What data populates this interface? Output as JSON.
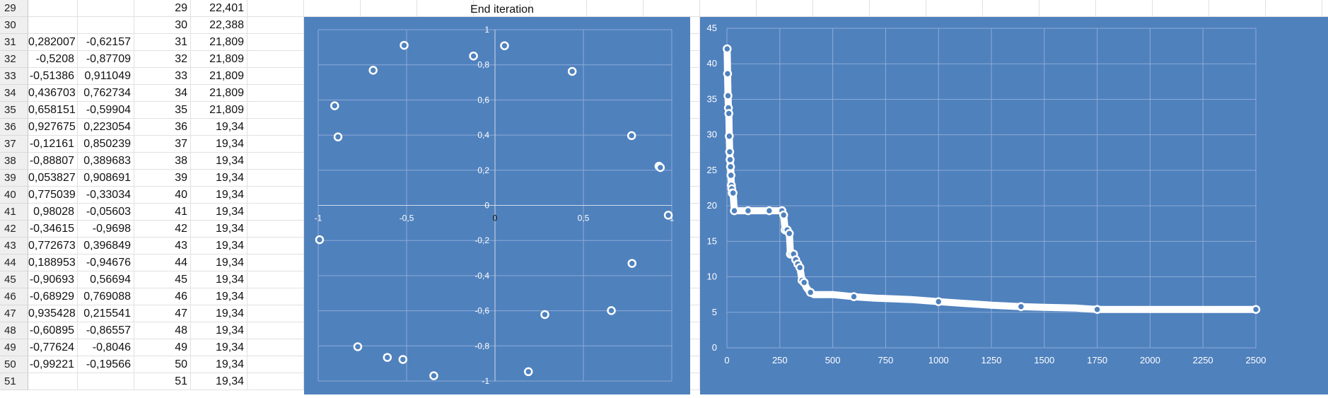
{
  "spreadsheet": {
    "rows": [
      {
        "row": "29",
        "a": "",
        "b": "",
        "c": "29",
        "d": "22,401"
      },
      {
        "row": "30",
        "a": "",
        "b": "",
        "c": "30",
        "d": "22,388"
      },
      {
        "row": "31",
        "a": "0,282007",
        "b": "-0,62157",
        "c": "31",
        "d": "21,809"
      },
      {
        "row": "32",
        "a": "-0,5208",
        "b": "-0,87709",
        "c": "32",
        "d": "21,809"
      },
      {
        "row": "33",
        "a": "-0,51386",
        "b": "0,911049",
        "c": "33",
        "d": "21,809"
      },
      {
        "row": "34",
        "a": "0,436703",
        "b": "0,762734",
        "c": "34",
        "d": "21,809"
      },
      {
        "row": "35",
        "a": "0,658151",
        "b": "-0,59904",
        "c": "35",
        "d": "21,809"
      },
      {
        "row": "36",
        "a": "0,927675",
        "b": "0,223054",
        "c": "36",
        "d": "19,34"
      },
      {
        "row": "37",
        "a": "-0,12161",
        "b": "0,850239",
        "c": "37",
        "d": "19,34"
      },
      {
        "row": "38",
        "a": "-0,88807",
        "b": "0,389683",
        "c": "38",
        "d": "19,34"
      },
      {
        "row": "39",
        "a": "0,053827",
        "b": "0,908691",
        "c": "39",
        "d": "19,34"
      },
      {
        "row": "40",
        "a": "0,775039",
        "b": "-0,33034",
        "c": "40",
        "d": "19,34"
      },
      {
        "row": "41",
        "a": "0,98028",
        "b": "-0,05603",
        "c": "41",
        "d": "19,34"
      },
      {
        "row": "42",
        "a": "-0,34615",
        "b": "-0,9698",
        "c": "42",
        "d": "19,34"
      },
      {
        "row": "43",
        "a": "0,772673",
        "b": "0,396849",
        "c": "43",
        "d": "19,34"
      },
      {
        "row": "44",
        "a": "0,188953",
        "b": "-0,94676",
        "c": "44",
        "d": "19,34"
      },
      {
        "row": "45",
        "a": "-0,90693",
        "b": "0,56694",
        "c": "45",
        "d": "19,34"
      },
      {
        "row": "46",
        "a": "-0,68929",
        "b": "0,769088",
        "c": "46",
        "d": "19,34"
      },
      {
        "row": "47",
        "a": "0,935428",
        "b": "0,215541",
        "c": "47",
        "d": "19,34"
      },
      {
        "row": "48",
        "a": "-0,60895",
        "b": "-0,86557",
        "c": "48",
        "d": "19,34"
      },
      {
        "row": "49",
        "a": "-0,77624",
        "b": "-0,8046",
        "c": "49",
        "d": "19,34"
      },
      {
        "row": "50",
        "a": "-0,99221",
        "b": "-0,19566",
        "c": "50",
        "d": "19,34"
      },
      {
        "row": "51",
        "a": "",
        "b": "",
        "c": "51",
        "d": "19,34"
      }
    ]
  },
  "colors": {
    "chart_bg": "#4f81bd",
    "gridline": "#8eaad6",
    "marker_fill": "#4f81bd",
    "marker_stroke": "#ffffff",
    "axis_text": "#ffffff",
    "zero_tick_text": "#111111"
  },
  "chart_data": [
    {
      "type": "scatter",
      "title": "End iteration",
      "xlim": [
        -1,
        1
      ],
      "ylim": [
        -1,
        1
      ],
      "xticks": [
        "-1",
        "-0,5",
        "0",
        "0,5",
        "1"
      ],
      "yticks": [
        "-1",
        "-0,8",
        "-0,6",
        "-0,4",
        "-0,2",
        "0",
        "0,2",
        "0,4",
        "0,6",
        "0,8",
        "1"
      ],
      "grid": true,
      "points": [
        [
          0.282007,
          -0.62157
        ],
        [
          -0.5208,
          -0.87709
        ],
        [
          -0.51386,
          0.911049
        ],
        [
          0.436703,
          0.762734
        ],
        [
          0.658151,
          -0.59904
        ],
        [
          0.927675,
          0.223054
        ],
        [
          -0.12161,
          0.850239
        ],
        [
          -0.88807,
          0.389683
        ],
        [
          0.053827,
          0.908691
        ],
        [
          0.775039,
          -0.33034
        ],
        [
          0.98028,
          -0.05603
        ],
        [
          -0.34615,
          -0.9698
        ],
        [
          0.772673,
          0.396849
        ],
        [
          0.188953,
          -0.94676
        ],
        [
          -0.90693,
          0.56694
        ],
        [
          -0.68929,
          0.769088
        ],
        [
          0.935428,
          0.215541
        ],
        [
          -0.60895,
          -0.86557
        ],
        [
          -0.77624,
          -0.8046
        ],
        [
          -0.99221,
          -0.19566
        ]
      ]
    },
    {
      "type": "line",
      "title": "",
      "xlim": [
        0,
        2500
      ],
      "ylim": [
        0,
        45
      ],
      "xticks": [
        "0",
        "250",
        "500",
        "750",
        "1000",
        "1250",
        "1500",
        "1750",
        "2000",
        "2250",
        "2500"
      ],
      "yticks": [
        "0",
        "5",
        "10",
        "15",
        "20",
        "25",
        "30",
        "35",
        "40",
        "45"
      ],
      "grid": true,
      "series": [
        {
          "x": [
            1,
            3,
            5,
            7,
            9,
            11,
            13,
            15,
            17,
            19,
            21,
            23,
            25,
            27,
            29,
            35,
            100,
            200,
            260,
            268,
            275,
            285,
            295,
            300,
            305,
            315,
            325,
            335,
            345,
            355,
            365,
            375,
            385,
            395,
            410,
            500,
            600,
            700,
            870,
            1000,
            1100,
            1250,
            1390,
            1500,
            1650,
            1750,
            2000,
            2250,
            2500
          ],
          "y": [
            42.1,
            38.6,
            35.5,
            33.8,
            33,
            29.8,
            27.6,
            26.5,
            25.5,
            24.3,
            22.9,
            22.4,
            21.8,
            21.8,
            21.8,
            19.3,
            19.3,
            19.3,
            19.3,
            18.7,
            16.6,
            16.6,
            16.1,
            13.2,
            13.2,
            13.2,
            12.4,
            11.8,
            11.3,
            9.5,
            9.2,
            8.5,
            8.1,
            7.8,
            7.5,
            7.5,
            7.2,
            7.0,
            6.8,
            6.5,
            6.3,
            6.0,
            5.8,
            5.7,
            5.6,
            5.4,
            5.4,
            5.4,
            5.4
          ]
        }
      ]
    }
  ]
}
